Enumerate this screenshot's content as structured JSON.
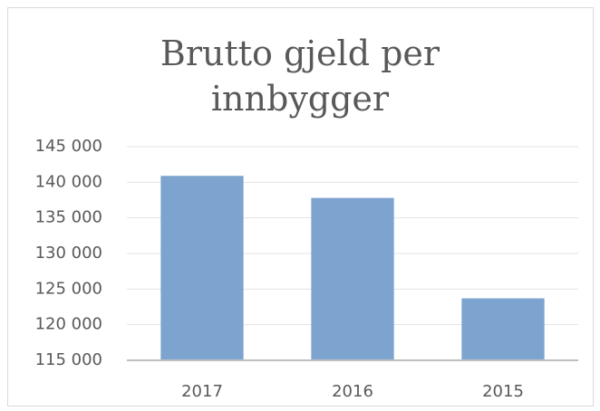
{
  "chart_data": {
    "type": "bar",
    "title": "Brutto gjeld per innbygger",
    "categories": [
      "2017",
      "2016",
      "2015"
    ],
    "values": [
      140900,
      137800,
      123700
    ],
    "color": "#7ca4cf",
    "ylim": [
      115000,
      145000
    ],
    "yticks": [
      {
        "value": 115000,
        "label": "115 000"
      },
      {
        "value": 120000,
        "label": "120 000"
      },
      {
        "value": 125000,
        "label": "125 000"
      },
      {
        "value": 130000,
        "label": "130 000"
      },
      {
        "value": 135000,
        "label": "135 000"
      },
      {
        "value": 140000,
        "label": "140 000"
      },
      {
        "value": 145000,
        "label": "145 000"
      }
    ],
    "grid": true
  }
}
